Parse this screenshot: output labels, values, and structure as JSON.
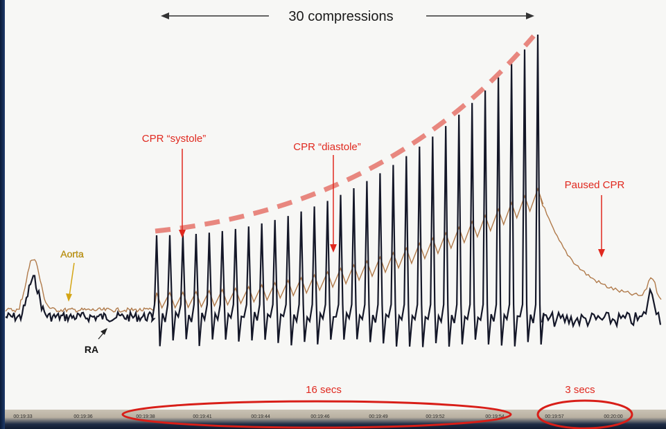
{
  "annotations": {
    "compressions": "30 compressions",
    "systole": "CPR “systole”",
    "diastole": "CPR “diastole”",
    "paused": "Paused CPR",
    "aorta": "Aorta",
    "ra": "RA",
    "sixteen": "16 secs",
    "three": "3 secs"
  },
  "colors": {
    "aorta": "#b07a4a",
    "ra": "#141728",
    "annotation_red": "#e0281e",
    "aorta_label": "#d4a514",
    "arrow_black": "#222222"
  },
  "time_ticks": [
    "00:19:33",
    "00:19:36",
    "00:19:38",
    "00:19:41",
    "00:19:44",
    "00:19:46",
    "00:19:49",
    "00:19:52",
    "00:19:54",
    "00:19:57",
    "00:20:00"
  ],
  "chart_data": {
    "type": "line",
    "title": "",
    "xlabel": "",
    "ylabel": "",
    "grid": false,
    "x_ticks": [
      "00:19:33",
      "00:19:36",
      "00:19:38",
      "00:19:41",
      "00:19:44",
      "00:19:46",
      "00:19:49",
      "00:19:52",
      "00:19:54",
      "00:19:57",
      "00:20:00"
    ],
    "compressions": 30,
    "series": [
      {
        "name": "Aorta"
      },
      {
        "name": "RA"
      }
    ],
    "annotations": [
      "30 compressions",
      "CPR “systole”",
      "CPR “diastole”",
      "Paused CPR",
      "16 secs",
      "3 secs"
    ]
  }
}
